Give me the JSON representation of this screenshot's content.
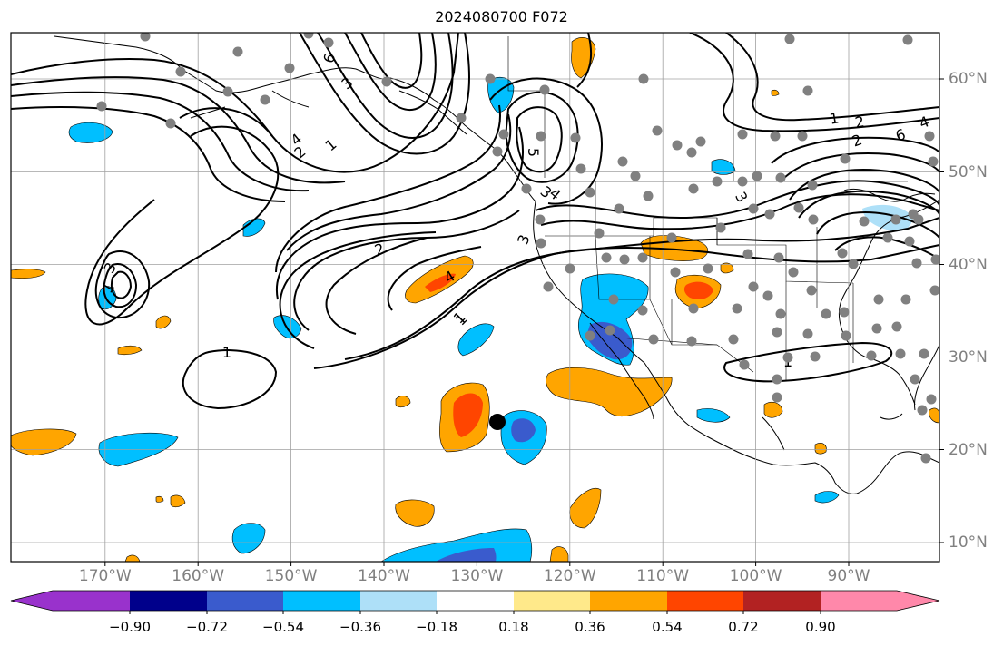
{
  "title": "2024080700 F072",
  "lon_labels": [
    "170°W",
    "160°W",
    "150°W",
    "140°W",
    "130°W",
    "120°W",
    "110°W",
    "100°W",
    "90°W"
  ],
  "lat_labels": [
    "60°N",
    "50°N",
    "40°N",
    "30°N",
    "20°N",
    "10°N"
  ],
  "contour_labels": [
    "6",
    "3",
    "1",
    "2",
    "4",
    "1",
    "3",
    "5",
    "2",
    "4",
    "3",
    "3",
    "1",
    "4",
    "2",
    "1",
    "1",
    "1",
    "2",
    "6",
    "4",
    "3",
    "1"
  ],
  "colorbar": {
    "ticks": [
      "−0.90",
      "−0.72",
      "−0.54",
      "−0.36",
      "−0.18",
      "0.18",
      "0.36",
      "0.54",
      "0.72",
      "0.90"
    ],
    "colors": [
      "#9932cc",
      "#00008b",
      "#3a5bcd",
      "#00bfff",
      "#aee0f8",
      "#ffffff",
      "#ffe98a",
      "#ffa500",
      "#ff4500",
      "#b22222",
      "#ff88aa"
    ]
  },
  "markers": {
    "station_color": "#808080",
    "storm_center_color": "#000000"
  }
}
